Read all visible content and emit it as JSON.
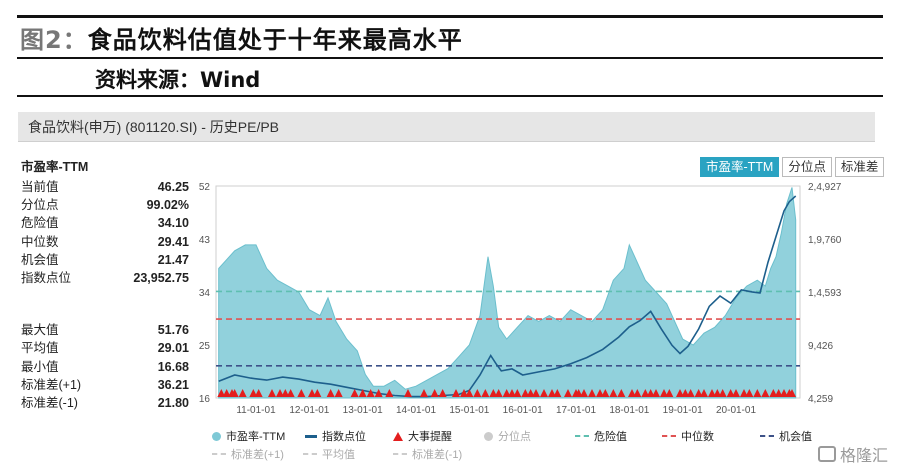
{
  "figure": {
    "number": "图2：",
    "title": "食品饮料估值处于十年来最高水平",
    "source": "资料来源：Wind"
  },
  "panel": {
    "header": "食品饮料(申万) (801120.SI) - 历史PE/PB"
  },
  "stats": {
    "section_title": "市盈率-TTM",
    "current": [
      {
        "label": "当前值",
        "value": "46.25"
      },
      {
        "label": "分位点",
        "value": "99.02%"
      },
      {
        "label": "危险值",
        "value": "34.10"
      },
      {
        "label": "中位数",
        "value": "29.41"
      },
      {
        "label": "机会值",
        "value": "21.47"
      },
      {
        "label": "指数点位",
        "value": "23,952.75"
      }
    ],
    "summary": [
      {
        "label": "最大值",
        "value": "51.76"
      },
      {
        "label": "平均值",
        "value": "29.01"
      },
      {
        "label": "最小值",
        "value": "16.68"
      },
      {
        "label": "标准差(+1)",
        "value": "36.21"
      },
      {
        "label": "标准差(-1)",
        "value": "21.80"
      }
    ]
  },
  "tabs": [
    {
      "label": "市盈率-TTM",
      "active": true
    },
    {
      "label": "分位点",
      "active": false
    },
    {
      "label": "标准差",
      "active": false
    }
  ],
  "legend": {
    "row1": [
      {
        "label": "市盈率-TTM",
        "symbol": "dot",
        "color": "#7ec9d6",
        "muted": false
      },
      {
        "label": "指数点位",
        "symbol": "bar",
        "color": "#1d5f8c",
        "muted": false
      },
      {
        "label": "大事提醒",
        "symbol": "triangle",
        "color": "#e31e1e",
        "muted": false
      },
      {
        "label": "分位点",
        "symbol": "dot",
        "color": "#cccccc",
        "muted": true
      },
      {
        "label": "危险值",
        "symbol": "dash",
        "color": "#5fbfb0",
        "muted": false
      },
      {
        "label": "中位数",
        "symbol": "dash",
        "color": "#e05353",
        "muted": false
      },
      {
        "label": "机会值",
        "symbol": "dash",
        "color": "#3d5288",
        "muted": false
      }
    ],
    "row2": [
      {
        "label": "标准差(+1)",
        "symbol": "dash",
        "color": "#cccccc",
        "muted": true
      },
      {
        "label": "平均值",
        "symbol": "dash",
        "color": "#cccccc",
        "muted": true
      },
      {
        "label": "标准差(-1)",
        "symbol": "dash",
        "color": "#cccccc",
        "muted": true
      }
    ]
  },
  "watermark": "格隆汇",
  "chart_data": {
    "type": "area",
    "x_ticks": [
      "11-01-01",
      "12-01-01",
      "13-01-01",
      "14-01-01",
      "15-01-01",
      "16-01-01",
      "17-01-01",
      "18-01-01",
      "19-01-01",
      "20-01-01"
    ],
    "y_left": {
      "ticks": [
        "52",
        "43",
        "34",
        "25",
        "16"
      ],
      "range": [
        16,
        52
      ]
    },
    "y_right": {
      "ticks": [
        "2,4,927",
        "1,9,760",
        "1,4,593",
        "9,426",
        "4,259"
      ],
      "range": [
        4259,
        24927
      ]
    },
    "reference_lines": [
      {
        "name": "危险值",
        "value": 34.1,
        "color": "#5fbfb0"
      },
      {
        "name": "中位数",
        "value": 29.41,
        "color": "#e05353"
      },
      {
        "name": "机会值",
        "value": 21.47,
        "color": "#3d5288"
      }
    ],
    "series": [
      {
        "name": "市盈率-TTM",
        "axis": "left",
        "color": "#7ec9d6",
        "x": [
          2010.3,
          2010.6,
          2010.8,
          2011.0,
          2011.2,
          2011.4,
          2011.6,
          2011.8,
          2012.0,
          2012.2,
          2012.35,
          2012.5,
          2012.7,
          2012.9,
          2013.05,
          2013.2,
          2013.4,
          2013.6,
          2013.8,
          2014.0,
          2014.2,
          2014.4,
          2014.6,
          2014.8,
          2015.0,
          2015.2,
          2015.35,
          2015.45,
          2015.55,
          2015.7,
          2015.9,
          2016.1,
          2016.3,
          2016.5,
          2016.7,
          2016.9,
          2017.1,
          2017.3,
          2017.5,
          2017.7,
          2017.9,
          2018.0,
          2018.1,
          2018.3,
          2018.5,
          2018.7,
          2018.85,
          2019.0,
          2019.2,
          2019.4,
          2019.6,
          2019.8,
          2020.0,
          2020.2,
          2020.4,
          2020.55,
          2020.65,
          2020.75,
          2020.85,
          2020.95,
          2021.05,
          2021.12
        ],
        "y": [
          38,
          41,
          42,
          42,
          38,
          36,
          35,
          34,
          31,
          30,
          33,
          29,
          26,
          24,
          20,
          18,
          18,
          19,
          17.5,
          18,
          19,
          20,
          21,
          23,
          25,
          30,
          40,
          35,
          28,
          26,
          28,
          30,
          29,
          30,
          29,
          31,
          30,
          29,
          31,
          36,
          38,
          42,
          40,
          36,
          34,
          32,
          29,
          26,
          25,
          27,
          28,
          30,
          33,
          35,
          36,
          35,
          38,
          40,
          44,
          49,
          51.76,
          46.25
        ]
      },
      {
        "name": "指数点位",
        "axis": "right",
        "color": "#1d5f8c",
        "x": [
          2010.3,
          2010.6,
          2010.9,
          2011.2,
          2011.5,
          2011.8,
          2012.1,
          2012.4,
          2012.7,
          2013.0,
          2013.3,
          2013.6,
          2013.9,
          2014.2,
          2014.5,
          2014.8,
          2015.0,
          2015.2,
          2015.4,
          2015.5,
          2015.6,
          2015.8,
          2016.0,
          2016.3,
          2016.6,
          2016.9,
          2017.2,
          2017.5,
          2017.8,
          2018.0,
          2018.2,
          2018.4,
          2018.6,
          2018.8,
          2018.95,
          2019.1,
          2019.3,
          2019.5,
          2019.7,
          2019.9,
          2020.1,
          2020.3,
          2020.45,
          2020.6,
          2020.75,
          2020.9,
          2021.0,
          2021.12
        ],
        "y": [
          5900,
          6500,
          6200,
          6000,
          6300,
          6100,
          5800,
          5600,
          5300,
          5000,
          4700,
          4500,
          4400,
          4400,
          4500,
          4600,
          5000,
          6500,
          8400,
          7600,
          6900,
          7100,
          6500,
          6800,
          7100,
          7600,
          8200,
          9000,
          10200,
          11200,
          11800,
          12700,
          11000,
          9400,
          8600,
          9300,
          11000,
          13200,
          14200,
          13500,
          14800,
          14600,
          14500,
          17500,
          20000,
          22500,
          23400,
          23952.75
        ]
      }
    ],
    "events_x": [
      2010.35,
      2010.45,
      2010.55,
      2010.6,
      2010.75,
      2010.95,
      2011.05,
      2011.3,
      2011.45,
      2011.55,
      2011.65,
      2011.85,
      2012.05,
      2012.15,
      2012.4,
      2012.55,
      2012.85,
      2013.0,
      2013.15,
      2013.3,
      2013.5,
      2013.85,
      2014.15,
      2014.35,
      2014.5,
      2014.75,
      2014.9,
      2015.0,
      2015.15,
      2015.3,
      2015.45,
      2015.55,
      2015.7,
      2015.8,
      2015.9,
      2016.05,
      2016.15,
      2016.25,
      2016.4,
      2016.55,
      2016.65,
      2016.85,
      2017.0,
      2017.05,
      2017.15,
      2017.3,
      2017.45,
      2017.55,
      2017.7,
      2017.85,
      2018.05,
      2018.15,
      2018.3,
      2018.4,
      2018.5,
      2018.65,
      2018.75,
      2018.95,
      2019.05,
      2019.15,
      2019.3,
      2019.4,
      2019.55,
      2019.65,
      2019.75,
      2019.9,
      2020.0,
      2020.15,
      2020.25,
      2020.4,
      2020.55,
      2020.7,
      2020.8,
      2020.9,
      2021.0,
      2021.05
    ]
  }
}
